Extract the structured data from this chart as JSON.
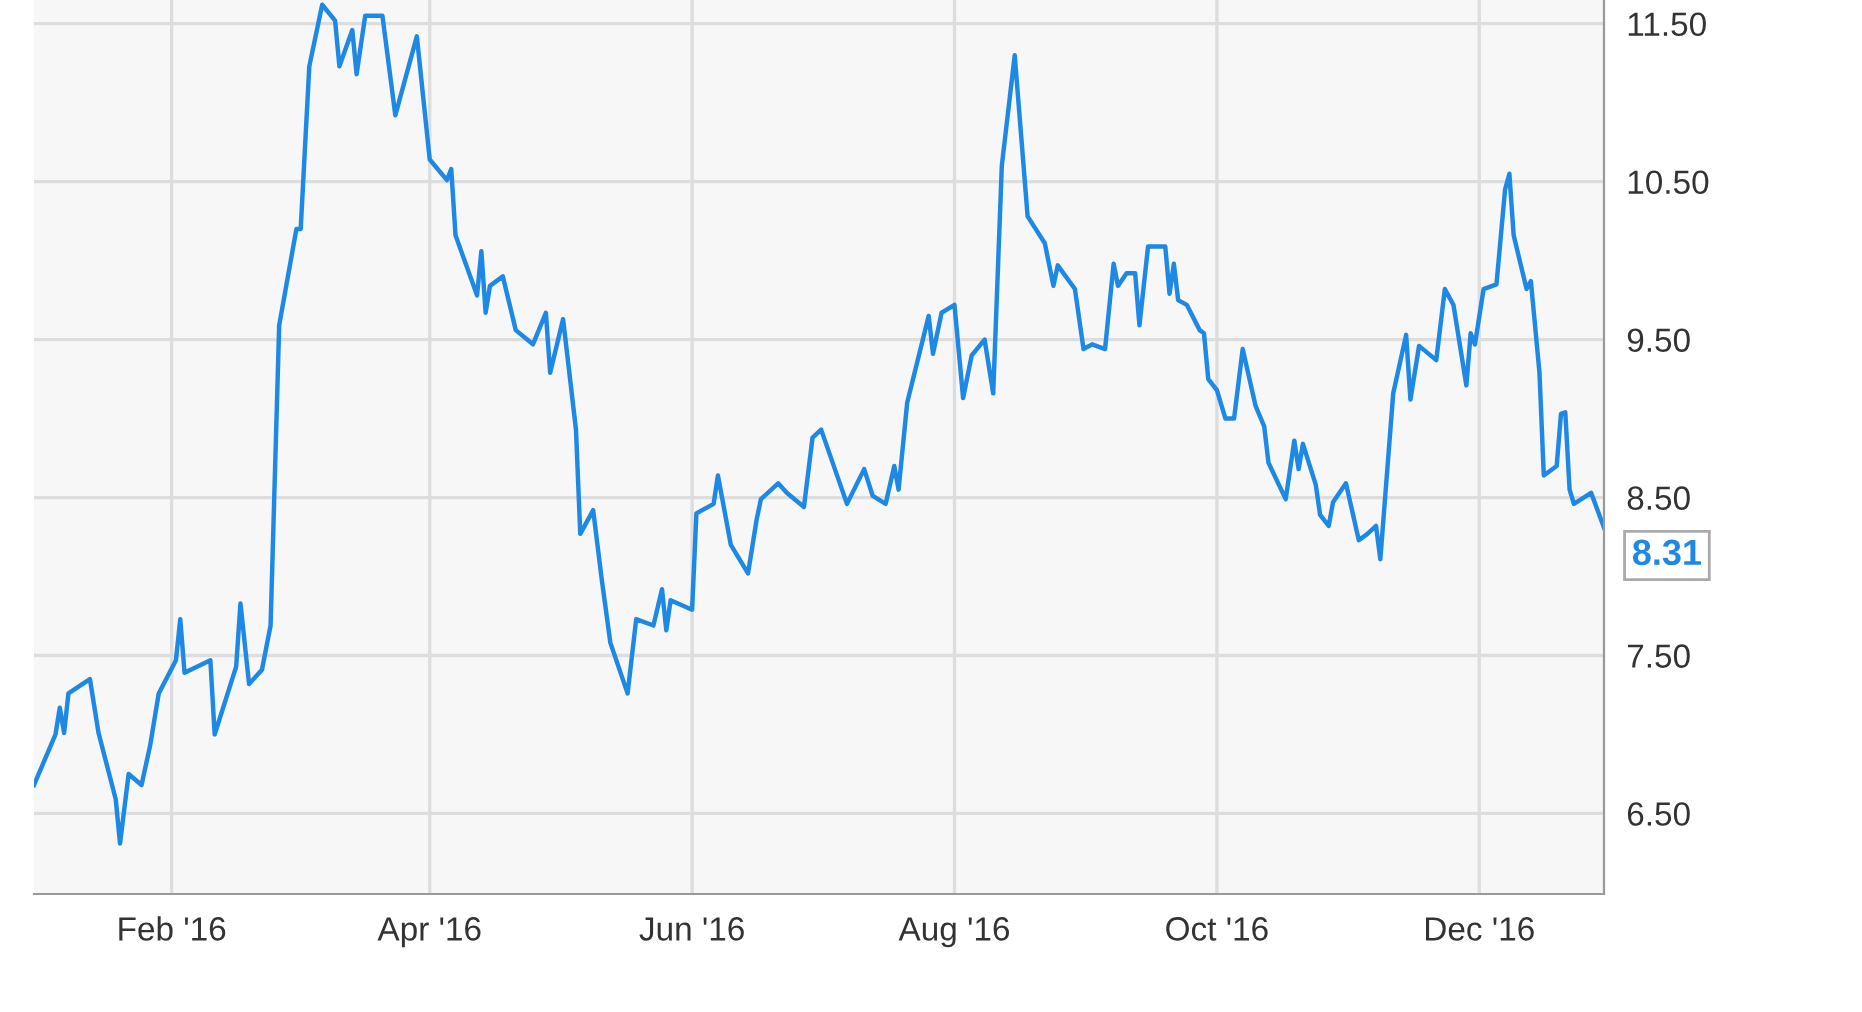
{
  "chart_data": {
    "type": "line",
    "x": [
      "2015-12-31",
      "2016-01-05",
      "2016-01-06",
      "2016-01-07",
      "2016-01-08",
      "2016-01-13",
      "2016-01-15",
      "2016-01-19",
      "2016-01-20",
      "2016-01-22",
      "2016-01-25",
      "2016-01-27",
      "2016-01-29",
      "2016-02-02",
      "2016-02-03",
      "2016-02-04",
      "2016-02-10",
      "2016-02-11",
      "2016-02-16",
      "2016-02-17",
      "2016-02-19",
      "2016-02-22",
      "2016-02-24",
      "2016-02-26",
      "2016-03-01",
      "2016-03-02",
      "2016-03-04",
      "2016-03-07",
      "2016-03-10",
      "2016-03-11",
      "2016-03-14",
      "2016-03-15",
      "2016-03-17",
      "2016-03-21",
      "2016-03-24",
      "2016-03-29",
      "2016-04-01",
      "2016-04-05",
      "2016-04-06",
      "2016-04-07",
      "2016-04-12",
      "2016-04-13",
      "2016-04-14",
      "2016-04-15",
      "2016-04-18",
      "2016-04-21",
      "2016-04-25",
      "2016-04-28",
      "2016-04-29",
      "2016-05-02",
      "2016-05-05",
      "2016-05-06",
      "2016-05-09",
      "2016-05-11",
      "2016-05-13",
      "2016-05-17",
      "2016-05-19",
      "2016-05-23",
      "2016-05-25",
      "2016-05-26",
      "2016-05-27",
      "2016-06-01",
      "2016-06-02",
      "2016-06-06",
      "2016-06-07",
      "2016-06-10",
      "2016-06-14",
      "2016-06-16",
      "2016-06-17",
      "2016-06-21",
      "2016-06-23",
      "2016-06-27",
      "2016-06-29",
      "2016-07-01",
      "2016-07-07",
      "2016-07-11",
      "2016-07-13",
      "2016-07-16",
      "2016-07-18",
      "2016-07-19",
      "2016-07-21",
      "2016-07-26",
      "2016-07-27",
      "2016-07-29",
      "2016-08-01",
      "2016-08-03",
      "2016-08-05",
      "2016-08-08",
      "2016-08-10",
      "2016-08-12",
      "2016-08-15",
      "2016-08-18",
      "2016-08-22",
      "2016-08-24",
      "2016-08-25",
      "2016-08-29",
      "2016-08-31",
      "2016-09-02",
      "2016-09-05",
      "2016-09-07",
      "2016-09-08",
      "2016-09-10",
      "2016-09-12",
      "2016-09-13",
      "2016-09-15",
      "2016-09-19",
      "2016-09-20",
      "2016-09-21",
      "2016-09-22",
      "2016-09-24",
      "2016-09-27",
      "2016-09-28",
      "2016-09-29",
      "2016-10-01",
      "2016-10-03",
      "2016-10-05",
      "2016-10-07",
      "2016-10-10",
      "2016-10-12",
      "2016-10-13",
      "2016-10-17",
      "2016-10-19",
      "2016-10-20",
      "2016-10-21",
      "2016-10-24",
      "2016-10-25",
      "2016-10-27",
      "2016-10-28",
      "2016-10-31",
      "2016-11-03",
      "2016-11-05",
      "2016-11-07",
      "2016-11-08",
      "2016-11-11",
      "2016-11-14",
      "2016-11-15",
      "2016-11-17",
      "2016-11-21",
      "2016-11-23",
      "2016-11-25",
      "2016-11-28",
      "2016-11-29",
      "2016-11-30",
      "2016-12-02",
      "2016-12-05",
      "2016-12-07",
      "2016-12-08",
      "2016-12-09",
      "2016-12-12",
      "2016-12-13",
      "2016-12-15",
      "2016-12-16",
      "2016-12-19",
      "2016-12-20",
      "2016-12-21",
      "2016-12-22",
      "2016-12-23",
      "2016-12-27",
      "2016-12-30"
    ],
    "series": [
      {
        "color": "#1e88e5",
        "values": [
          6.68,
          7.0,
          7.17,
          7.01,
          7.26,
          7.35,
          7.01,
          6.59,
          6.31,
          6.75,
          6.68,
          6.93,
          7.26,
          7.47,
          7.73,
          7.39,
          7.47,
          7.0,
          7.43,
          7.83,
          7.32,
          7.41,
          7.69,
          9.59,
          10.2,
          10.2,
          11.23,
          11.62,
          11.52,
          11.23,
          11.46,
          11.18,
          11.55,
          11.55,
          10.92,
          11.42,
          10.64,
          10.51,
          10.58,
          10.16,
          9.78,
          10.06,
          9.67,
          9.84,
          9.9,
          9.56,
          9.47,
          9.67,
          9.29,
          9.63,
          8.93,
          8.27,
          8.42,
          7.98,
          7.58,
          7.26,
          7.73,
          7.69,
          7.92,
          7.66,
          7.85,
          7.79,
          8.4,
          8.46,
          8.64,
          8.2,
          8.02,
          8.36,
          8.49,
          8.59,
          8.53,
          8.44,
          8.88,
          8.93,
          8.46,
          8.68,
          8.51,
          8.46,
          8.7,
          8.55,
          9.1,
          9.65,
          9.41,
          9.67,
          9.72,
          9.13,
          9.4,
          9.5,
          9.16,
          10.6,
          11.3,
          10.28,
          10.11,
          9.84,
          9.97,
          9.82,
          9.44,
          9.47,
          9.44,
          9.98,
          9.84,
          9.92,
          9.92,
          9.59,
          10.09,
          10.09,
          9.79,
          9.98,
          9.75,
          9.72,
          9.56,
          9.54,
          9.25,
          9.18,
          9.0,
          9.0,
          9.44,
          9.08,
          8.95,
          8.72,
          8.49,
          8.86,
          8.68,
          8.84,
          8.58,
          8.39,
          8.32,
          8.47,
          8.59,
          8.23,
          8.27,
          8.32,
          8.11,
          9.16,
          9.53,
          9.12,
          9.46,
          9.37,
          9.82,
          9.72,
          9.21,
          9.54,
          9.47,
          9.82,
          9.85,
          10.45,
          10.55,
          10.16,
          9.82,
          9.87,
          9.29,
          8.64,
          8.7,
          9.03,
          9.04,
          8.55,
          8.46,
          8.53,
          8.31
        ]
      }
    ],
    "annotations": [
      {
        "text": "8.31",
        "x": "2016-12-30",
        "y": 8.31
      }
    ],
    "xlim": [
      "2015-12-31",
      "2016-12-30"
    ],
    "xticks": [
      {
        "value": "2016-02-01",
        "label": "Feb '16"
      },
      {
        "value": "2016-04-01",
        "label": "Apr '16"
      },
      {
        "value": "2016-06-01",
        "label": "Jun '16"
      },
      {
        "value": "2016-08-01",
        "label": "Aug '16"
      },
      {
        "value": "2016-10-01",
        "label": "Oct '16"
      },
      {
        "value": "2016-12-01",
        "label": "Dec '16"
      }
    ],
    "ylim": [
      5.99,
      11.65
    ],
    "yticks": [
      {
        "value": 6.5,
        "label": "6.50"
      },
      {
        "value": 7.5,
        "label": "7.50"
      },
      {
        "value": 8.5,
        "label": "8.50"
      },
      {
        "value": 9.5,
        "label": "9.50"
      },
      {
        "value": 10.5,
        "label": "10.50"
      },
      {
        "value": 11.5,
        "label": "11.50"
      }
    ],
    "grid": true,
    "legend": false,
    "marker": "none",
    "line_style": "solid"
  }
}
